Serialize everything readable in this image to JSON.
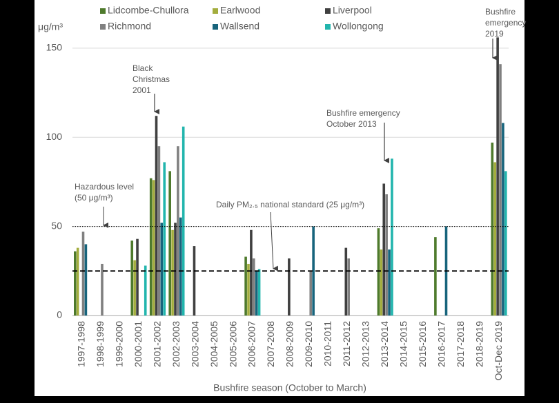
{
  "chart_data": {
    "type": "bar",
    "y_unit": "μg/m³",
    "x_label": "Bushfire season (October to March)",
    "categories": [
      "1997-1998",
      "1998-1999",
      "1999-2000",
      "2000-2001",
      "2001-2002",
      "2002-2003",
      "2003-2004",
      "2004-2005",
      "2005-2006",
      "2006-2007",
      "2007-2008",
      "2008-2009",
      "2009-2010",
      "2010-2011",
      "2011-2012",
      "2012-2013",
      "2013-2014",
      "2014-2015",
      "2015-2016",
      "2016-2017",
      "2017-2018",
      "2018-2019",
      "Oct-Dec 2019"
    ],
    "series": [
      {
        "name": "Lidcombe-Chullora",
        "color": "#4e7a2c",
        "values": [
          36,
          null,
          null,
          42,
          77,
          81,
          null,
          null,
          null,
          33,
          null,
          null,
          null,
          null,
          null,
          null,
          49,
          null,
          null,
          44,
          null,
          null,
          97
        ]
      },
      {
        "name": "Earlwood",
        "color": "#a3ad3e",
        "values": [
          38,
          null,
          null,
          31,
          76,
          48,
          null,
          null,
          null,
          29,
          null,
          null,
          null,
          null,
          null,
          null,
          37,
          null,
          null,
          null,
          null,
          null,
          86
        ]
      },
      {
        "name": "Liverpool",
        "color": "#404040",
        "values": [
          null,
          null,
          null,
          43,
          112,
          52,
          39,
          null,
          null,
          48,
          null,
          32,
          null,
          null,
          38,
          null,
          74,
          null,
          null,
          null,
          null,
          null,
          156
        ]
      },
      {
        "name": "Richmond",
        "color": "#808080",
        "values": [
          47,
          29,
          null,
          null,
          95,
          95,
          null,
          null,
          null,
          32,
          null,
          null,
          25,
          null,
          32,
          null,
          68,
          null,
          null,
          null,
          null,
          null,
          141
        ]
      },
      {
        "name": "Wallsend",
        "color": "#17647c",
        "values": [
          40,
          null,
          null,
          null,
          52,
          55,
          null,
          null,
          null,
          25,
          null,
          null,
          50,
          null,
          null,
          null,
          37,
          null,
          null,
          50,
          null,
          null,
          108
        ]
      },
      {
        "name": "Wollongong",
        "color": "#22b5ad",
        "values": [
          null,
          null,
          null,
          28,
          86,
          106,
          null,
          null,
          null,
          26,
          null,
          null,
          null,
          null,
          null,
          null,
          88,
          null,
          null,
          null,
          null,
          null,
          81
        ]
      }
    ],
    "ylim": [
      0,
      160
    ],
    "yticks": [
      0,
      50,
      100,
      150
    ],
    "grid": true,
    "reference_lines": [
      {
        "value": 50,
        "style": "dotted",
        "label": [
          "Hazardous level",
          "(50 μg/m³)"
        ]
      },
      {
        "value": 25,
        "style": "dashed",
        "label": [
          "Daily PM₂.₅ national standard (25 μg/m³)"
        ]
      }
    ],
    "annotations": [
      {
        "label": [
          "Black",
          "Christmas",
          "2001"
        ]
      },
      {
        "label": [
          "Bushfire emergency",
          "October 2013"
        ]
      },
      {
        "label": [
          "Bushfire",
          "emergency",
          "2019"
        ]
      }
    ]
  }
}
